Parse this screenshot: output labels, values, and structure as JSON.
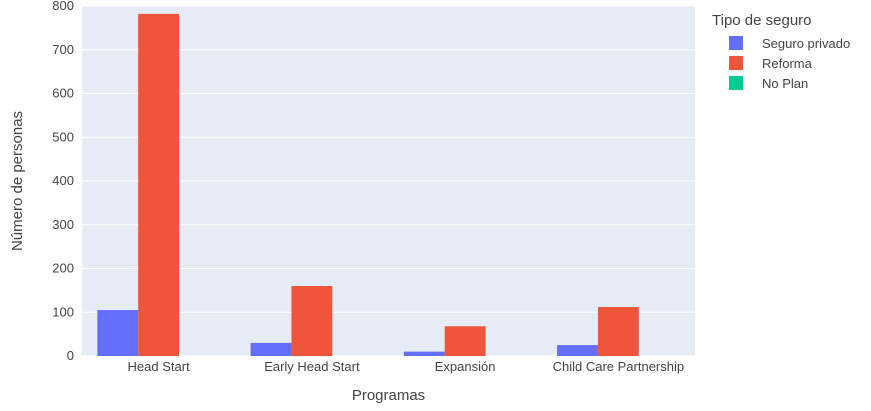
{
  "chart_data": {
    "type": "bar",
    "categories": [
      "Head Start",
      "Early Head Start",
      "Expansión",
      "Child Care Partnership"
    ],
    "series": [
      {
        "name": "Seguro privado",
        "values": [
          105,
          30,
          10,
          25
        ],
        "color": "#636efa"
      },
      {
        "name": "Reforma",
        "values": [
          782,
          160,
          68,
          112
        ],
        "color": "#ef553b"
      },
      {
        "name": "No Plan",
        "values": [
          0,
          0,
          0,
          0
        ],
        "color": "#00cc96"
      }
    ],
    "xlabel": "Programas",
    "ylabel": "Número de personas",
    "ylim": [
      0,
      800
    ],
    "yticks": [
      0,
      100,
      200,
      300,
      400,
      500,
      600,
      700,
      800
    ],
    "grid": true,
    "legend": {
      "title": "Tipo de seguro",
      "position": "top-right"
    },
    "plot_background": "#e5ecf6"
  }
}
